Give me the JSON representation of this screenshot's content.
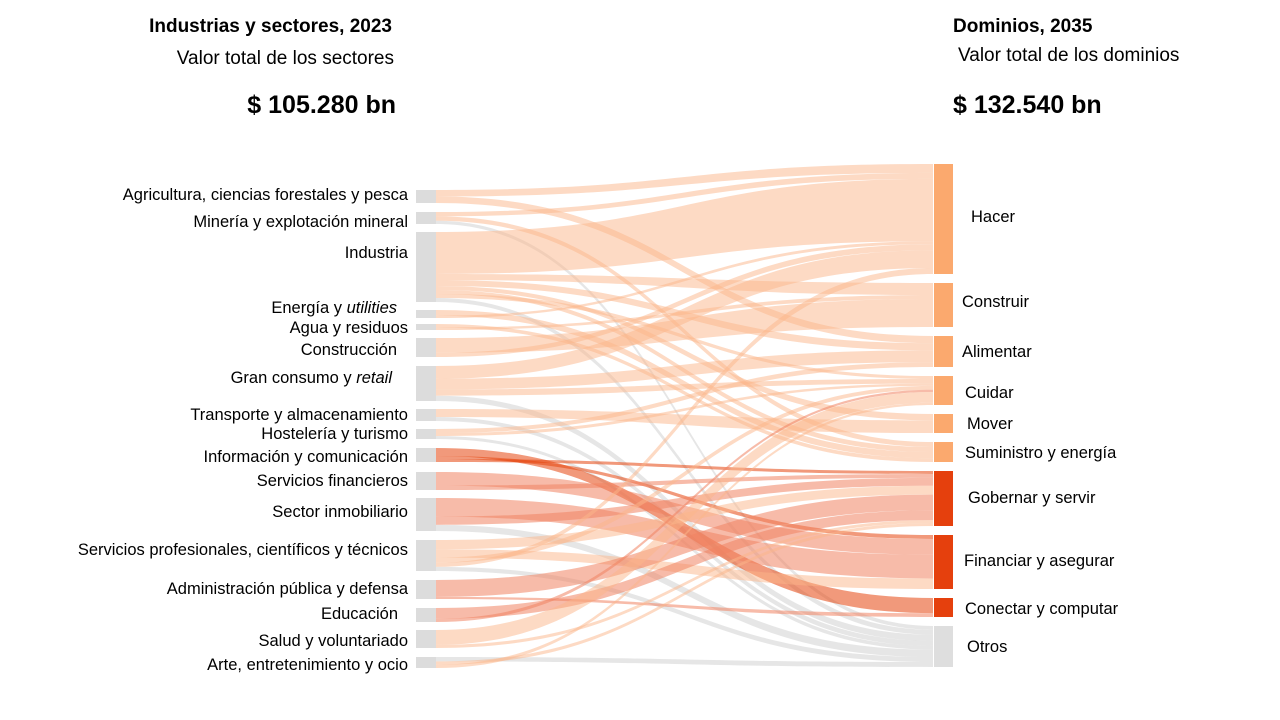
{
  "left": {
    "title": "Industrias y sectores, 2023",
    "subtitle": "Valor total de los sectores",
    "total": "$ 105.280 bn"
  },
  "right": {
    "title": "Dominios, 2035",
    "subtitle": "Valor total de los dominios",
    "total": "$ 132.540 bn"
  },
  "colors": {
    "source_bar": "#dcdcdc",
    "domain_light": "#fba96e",
    "domain_dark": "#e5400d",
    "domain_other": "#dedede",
    "flow_light": "#fbb68a",
    "flow_mid": "#f08363",
    "flow_dark": "#e5460e",
    "flow_grey": "#d2d2d2"
  },
  "sources": [
    {
      "label": "Agricultura, ciencias forestales y pesca",
      "shade": "light"
    },
    {
      "label": "Minería y explotación mineral",
      "shade": "light"
    },
    {
      "label": "Industria",
      "shade": "light"
    },
    {
      "label": "Energía y ",
      "label_italic": "utilities",
      "shade": "light"
    },
    {
      "label": "Agua y residuos",
      "shade": "light"
    },
    {
      "label": "Construcción",
      "shade": "light"
    },
    {
      "label": "Gran consumo y ",
      "label_italic": "retail",
      "shade": "light"
    },
    {
      "label": "Transporte y almacenamiento",
      "shade": "light"
    },
    {
      "label": "Hostelería y turismo",
      "shade": "light"
    },
    {
      "label": "Información y comunicación",
      "shade": "dark"
    },
    {
      "label": "Servicios financieros",
      "shade": "mid"
    },
    {
      "label": "Sector inmobiliario",
      "shade": "mid"
    },
    {
      "label": "Servicios profesionales, científicos y técnicos",
      "shade": "light"
    },
    {
      "label": "Administración pública y defensa",
      "shade": "mid"
    },
    {
      "label": "Educación",
      "shade": "mid"
    },
    {
      "label": "Salud y voluntariado",
      "shade": "light"
    },
    {
      "label": "Arte, entretenimiento y ocio",
      "shade": "light"
    }
  ],
  "domains": [
    {
      "label": "Hacer",
      "shade": "light"
    },
    {
      "label": "Construir",
      "shade": "light"
    },
    {
      "label": "Alimentar",
      "shade": "light"
    },
    {
      "label": "Cuidar",
      "shade": "light"
    },
    {
      "label": "Mover",
      "shade": "light"
    },
    {
      "label": "Suministro  y energía",
      "shade": "light"
    },
    {
      "label": "Gobernar y servir",
      "shade": "dark"
    },
    {
      "label": "Financiar y asegurar",
      "shade": "dark"
    },
    {
      "label": "Conectar y computar",
      "shade": "dark"
    },
    {
      "label": "Otros",
      "shade": "other"
    }
  ]
}
